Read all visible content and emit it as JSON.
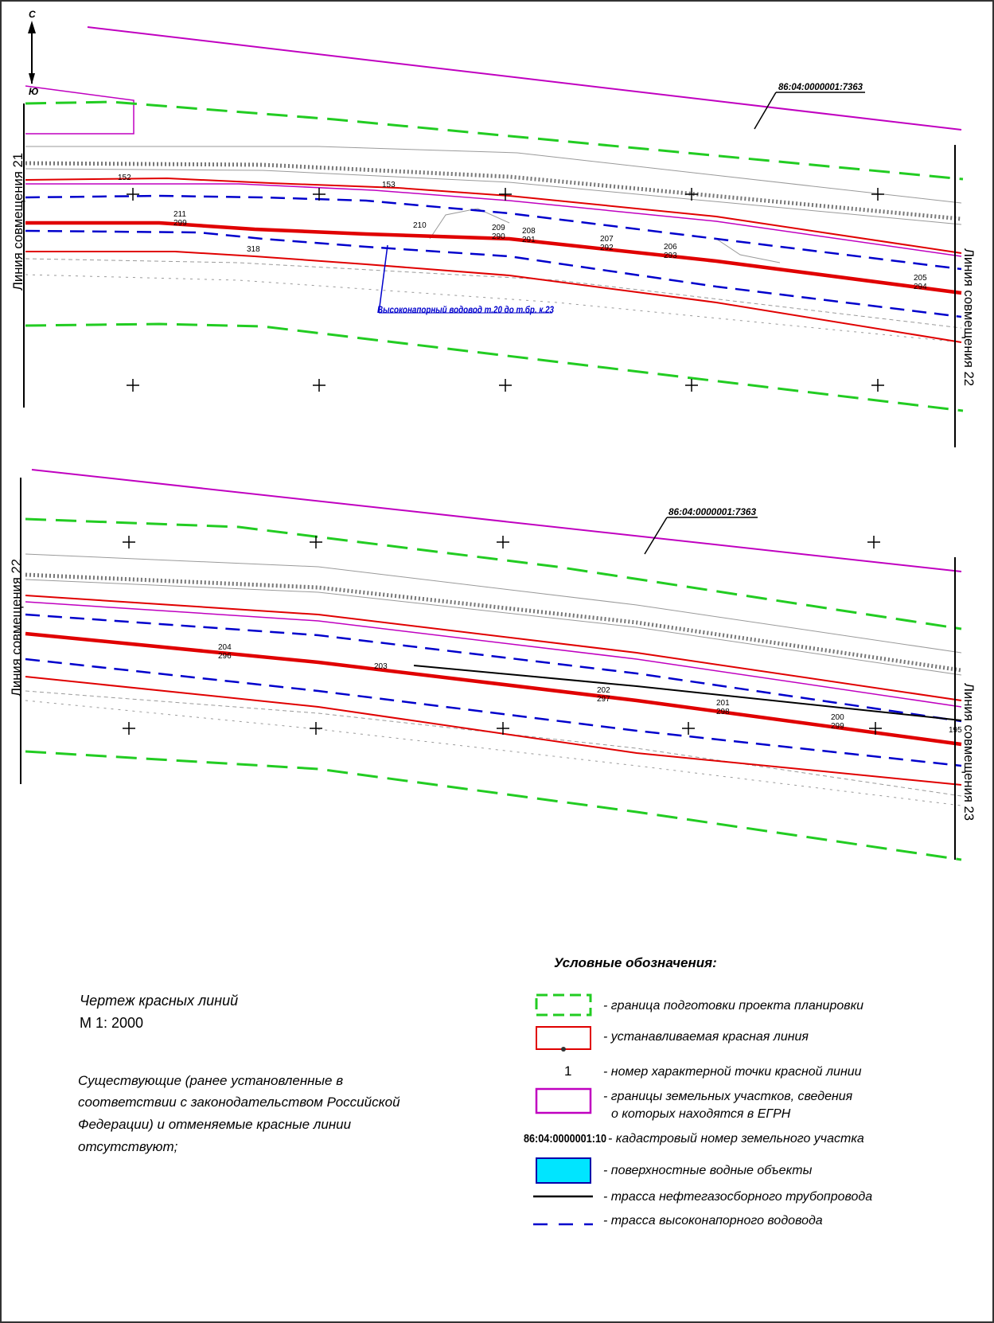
{
  "north_arrow": {
    "north": "С",
    "south": "Ю"
  },
  "sheet1": {
    "left_label": "Линия совмещения 21",
    "right_label": "Линия совмещения 22",
    "cadastral": "86:04:0000001:7363",
    "water_pipeline_label": "Высоконапорный водовод т.20 до т.бр. к.23",
    "points": [
      "152",
      "153",
      "211",
      "210",
      "209",
      "208",
      "207",
      "206",
      "205",
      "318",
      "299",
      "290",
      "291",
      "292",
      "293",
      "294"
    ]
  },
  "sheet2": {
    "left_label": "Линия совмещения 22",
    "right_label": "Линия совмещения 23",
    "cadastral": "86:04:0000001:7363",
    "points": [
      "204",
      "203",
      "202",
      "201",
      "200",
      "195",
      "296",
      "297",
      "298",
      "299"
    ]
  },
  "drawing": {
    "title": "Чертеж красных линий",
    "scale": "М 1: 2000",
    "note": "Существующие (ранее установленные в соответствии с законодательством Российской Федерации) и отменяемые красные линии отсутствуют;",
    "note_lines": [
      "Существующие (ранее установленные в",
      "соответствии с законодательством Российской",
      "Федерации) и отменяемые красные линии",
      "отсутствуют;"
    ]
  },
  "legend": {
    "title": "Условные обозначения:",
    "items": [
      {
        "symbol": "green-dashed-box",
        "text": "- граница подготовки проекта планировки"
      },
      {
        "symbol": "red-box",
        "text": "- устанавливаемая красная линия"
      },
      {
        "symbol": "number",
        "label": "1",
        "text": "- номер характерной точки красной линии"
      },
      {
        "symbol": "magenta-box",
        "text": "- границы земельных участков, сведения",
        "text2": "о которых находятся в ЕГРН"
      },
      {
        "symbol": "cadastral-number",
        "label": "86:04:0000001:10",
        "text": "- кадастровый номер земельного участка"
      },
      {
        "symbol": "cyan-box",
        "text": "- поверхностные водные объекты"
      },
      {
        "symbol": "black-line",
        "text": "- трасса нефтегазосборного трубопровода"
      },
      {
        "symbol": "blue-dashed-line",
        "text": "- трасса высоконапорного водовода"
      }
    ]
  },
  "colors": {
    "red_line": "#e00000",
    "magenta": "#c000c0",
    "green_dashed": "#22cc22",
    "blue_dashed": "#0000cc",
    "water_cyan": "#00e5ff",
    "black_pipeline": "#000000"
  }
}
